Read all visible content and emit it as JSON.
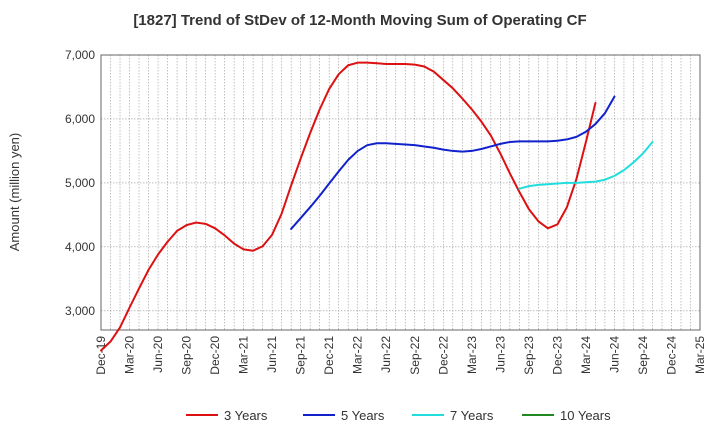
{
  "chart_data": {
    "type": "line",
    "title": "[1827]  Trend of StDev of 12-Month Moving Sum of Operating CF",
    "xlabel": "",
    "ylabel": "Amount (million yen)",
    "x_tick_labels": [
      "Dec-19",
      "Mar-20",
      "Jun-20",
      "Sep-20",
      "Dec-20",
      "Mar-21",
      "Jun-21",
      "Sep-21",
      "Dec-21",
      "Mar-22",
      "Jun-22",
      "Sep-22",
      "Dec-22",
      "Mar-23",
      "Jun-23",
      "Sep-23",
      "Dec-23",
      "Mar-24",
      "Jun-24",
      "Sep-24",
      "Dec-24",
      "Mar-25"
    ],
    "y_ticks": [
      3000,
      4000,
      5000,
      6000,
      7000
    ],
    "y_tick_labels": [
      "3,000",
      "4,000",
      "5,000",
      "6,000",
      "7,000"
    ],
    "ylim": [
      2700,
      7000
    ],
    "grid": true,
    "legend_position": "bottom",
    "colors": {
      "3y": "#dd1111",
      "5y": "#1122cc",
      "7y": "#22dddd",
      "10y": "#228822"
    },
    "series": [
      {
        "name": "3 Years",
        "color": "#dd1111",
        "x_start": "Dec-19",
        "values": [
          2380,
          2520,
          2740,
          3050,
          3350,
          3640,
          3880,
          4080,
          4250,
          4340,
          4380,
          4360,
          4290,
          4180,
          4050,
          3960,
          3940,
          4010,
          4190,
          4520,
          4960,
          5380,
          5780,
          6150,
          6470,
          6700,
          6840,
          6880,
          6880,
          6870,
          6860,
          6860,
          6860,
          6850,
          6820,
          6740,
          6610,
          6480,
          6320,
          6150,
          5960,
          5740,
          5460,
          5150,
          4860,
          4590,
          4400,
          4290,
          4350,
          4620,
          5060,
          5640,
          6250
        ]
      },
      {
        "name": "5 Years",
        "color": "#1122cc",
        "x_start": "Aug-21",
        "values": [
          4280,
          4450,
          4620,
          4800,
          4990,
          5180,
          5360,
          5500,
          5590,
          5620,
          5620,
          5610,
          5600,
          5590,
          5570,
          5550,
          5520,
          5500,
          5490,
          5500,
          5530,
          5570,
          5610,
          5640,
          5650,
          5650,
          5650,
          5650,
          5660,
          5680,
          5720,
          5800,
          5920,
          6090,
          6350
        ]
      },
      {
        "name": "7 Years",
        "color": "#22dddd",
        "x_start": "Aug-23",
        "values": [
          4910,
          4950,
          4970,
          4980,
          4990,
          5000,
          5000,
          5010,
          5020,
          5050,
          5110,
          5200,
          5320,
          5460,
          5640
        ]
      },
      {
        "name": "10 Years",
        "color": "#228822",
        "x_start": "Sep-24",
        "values": []
      }
    ]
  }
}
